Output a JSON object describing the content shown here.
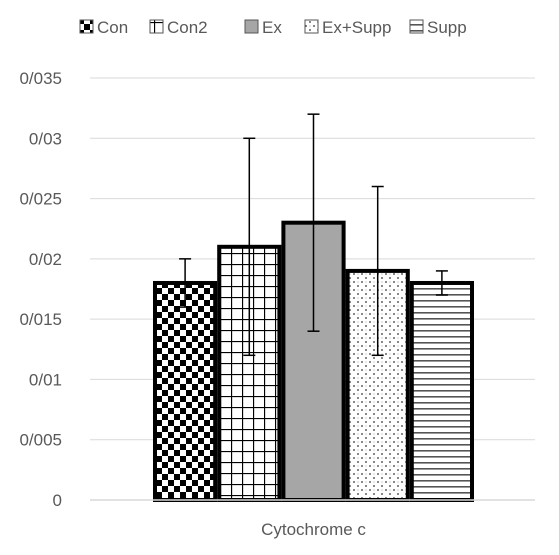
{
  "chart_data": {
    "type": "bar",
    "categories": [
      "Cytochrome c"
    ],
    "xlabel": "",
    "ylabel": "",
    "ylim": [
      0,
      0.035
    ],
    "y_ticks": [
      {
        "value": 0,
        "label": "0"
      },
      {
        "value": 0.005,
        "label": "0/005"
      },
      {
        "value": 0.01,
        "label": "0/01"
      },
      {
        "value": 0.015,
        "label": "0/015"
      },
      {
        "value": 0.02,
        "label": "0/02"
      },
      {
        "value": 0.025,
        "label": "0/025"
      },
      {
        "value": 0.03,
        "label": "0/03"
      },
      {
        "value": 0.035,
        "label": "0/035"
      }
    ],
    "grid": true,
    "legend_position": "top",
    "series": [
      {
        "name": "Con",
        "values": [
          0.018
        ],
        "error_low": [
          0.016
        ],
        "error_high": [
          0.02
        ],
        "pattern": "checker"
      },
      {
        "name": "Con2",
        "values": [
          0.021
        ],
        "error_low": [
          0.012
        ],
        "error_high": [
          0.03
        ],
        "pattern": "grid"
      },
      {
        "name": "Ex",
        "values": [
          0.023
        ],
        "error_low": [
          0.014
        ],
        "error_high": [
          0.032
        ],
        "pattern": "solid-gray"
      },
      {
        "name": "Ex+Supp",
        "values": [
          0.019
        ],
        "error_low": [
          0.012
        ],
        "error_high": [
          0.026
        ],
        "pattern": "dots"
      },
      {
        "name": "Supp",
        "values": [
          0.018
        ],
        "error_low": [
          0.017
        ],
        "error_high": [
          0.019
        ],
        "pattern": "hlines"
      }
    ],
    "colors": {
      "bar_outline": "#000000",
      "gray_fill": "#a6a6a6",
      "grid": "#d9d9d9",
      "text": "#595959"
    }
  }
}
